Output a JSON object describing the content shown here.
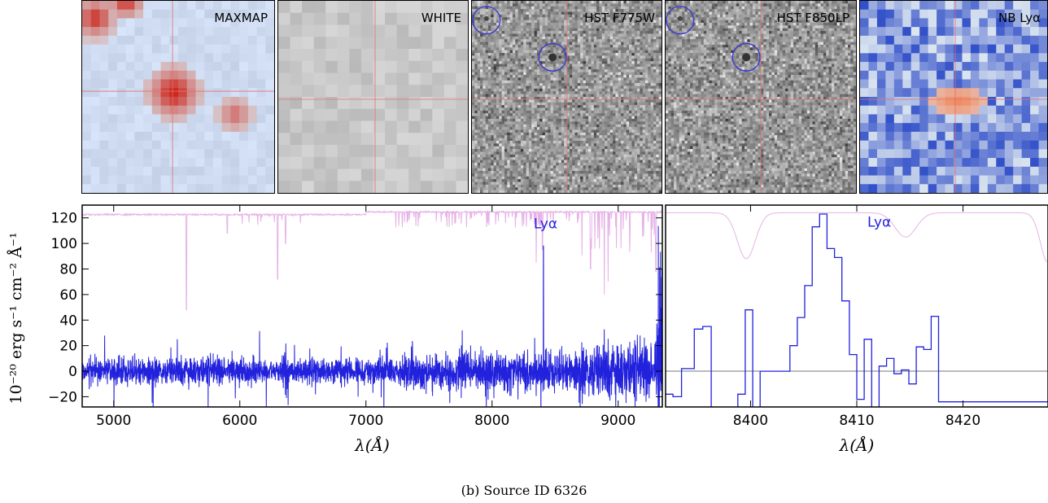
{
  "thumbnails": [
    {
      "label": "MAXMAP",
      "style": "maxmap"
    },
    {
      "label": "WHITE",
      "style": "white"
    },
    {
      "label": "HST F775W",
      "style": "hst",
      "circles": 2
    },
    {
      "label": "HST F850LP",
      "style": "hst",
      "circles": 2
    },
    {
      "label": "NB Lyα",
      "style": "nb"
    }
  ],
  "colors": {
    "spectrum": "#2222dd",
    "sky": "#e6b3e6",
    "crosshair": "#e07070",
    "circle": "#3a3ad0"
  },
  "y_axis_label": "10⁻²⁰ erg s⁻¹ cm⁻² Å⁻¹",
  "caption": "(b) Source ID 6326",
  "chart_data": [
    {
      "type": "line",
      "panel": "full-spectrum",
      "xlabel": "λ(Å)",
      "xlim": [
        4750,
        9350
      ],
      "ylim": [
        -28,
        130
      ],
      "xticks": [
        5000,
        6000,
        7000,
        8000,
        9000
      ],
      "yticks": [
        -20,
        0,
        20,
        40,
        60,
        80,
        100,
        120
      ],
      "annotation": {
        "text": "Lyα",
        "x": 8330,
        "y": 112
      },
      "series": [
        {
          "role": "spectrum",
          "description": "noisy flux around 0 with emission spike near 8408 Å"
        },
        {
          "role": "sky",
          "description": "sky spectrum scaled near 122 with absorption dips"
        }
      ],
      "features": {
        "lya_peak": {
          "x": 8408,
          "y": 98
        },
        "sky_dips": [
          [
            5577,
            48
          ],
          [
            6300,
            72
          ],
          [
            5900,
            108
          ],
          [
            6363,
            100
          ],
          [
            8350,
            85
          ],
          [
            8400,
            95
          ],
          [
            8780,
            80
          ],
          [
            8890,
            60
          ],
          [
            8920,
            70
          ],
          [
            9300,
            78
          ]
        ]
      }
    },
    {
      "type": "line",
      "panel": "zoom-spectrum",
      "xlabel": "λ(Å)",
      "xlim": [
        8392,
        8428
      ],
      "ylim": [
        -28,
        130
      ],
      "xticks": [
        8400,
        8410,
        8420
      ],
      "annotation": {
        "text": "Lyα",
        "x": 8411,
        "y": 113
      },
      "step_values": [
        [
          8392.0,
          -18
        ],
        [
          8392.7,
          -20
        ],
        [
          8393.5,
          2
        ],
        [
          8394.7,
          33
        ],
        [
          8395.5,
          35
        ],
        [
          8396.3,
          -30
        ],
        [
          8398.8,
          -18
        ],
        [
          8399.5,
          48
        ],
        [
          8400.2,
          -30
        ],
        [
          8400.9,
          0
        ],
        [
          8401.6,
          0
        ],
        [
          8402.3,
          0
        ],
        [
          8403.0,
          0
        ],
        [
          8403.7,
          20
        ],
        [
          8404.4,
          42
        ],
        [
          8405.1,
          67
        ],
        [
          8405.8,
          113
        ],
        [
          8406.5,
          123
        ],
        [
          8407.2,
          96
        ],
        [
          8407.9,
          89
        ],
        [
          8408.6,
          55
        ],
        [
          8409.3,
          13
        ],
        [
          8410.0,
          -22
        ],
        [
          8410.7,
          25
        ],
        [
          8411.4,
          -30
        ],
        [
          8412.1,
          4
        ],
        [
          8412.8,
          10
        ],
        [
          8413.5,
          -2
        ],
        [
          8414.2,
          1
        ],
        [
          8414.9,
          -10
        ],
        [
          8415.6,
          19
        ],
        [
          8416.3,
          17
        ],
        [
          8417.0,
          43
        ],
        [
          8417.7,
          -24
        ],
        [
          8428.0,
          -24
        ]
      ],
      "zero_line": 0
    }
  ]
}
